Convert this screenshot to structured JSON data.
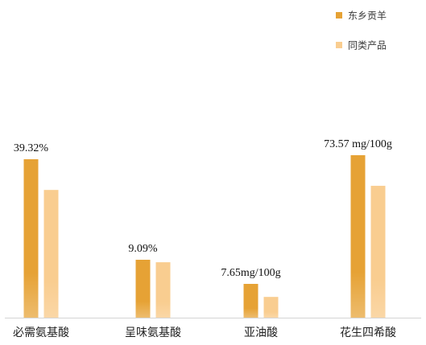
{
  "chart_data": {
    "type": "bar",
    "categories": [
      "必需氨基酸",
      "呈味氨基酸",
      "亚油酸",
      "花生四希酸"
    ],
    "series": [
      {
        "name": "东乡贡羊",
        "color": "#e6a235",
        "values": [
          39.32,
          9.09,
          7.65,
          73.57
        ],
        "data_labels": [
          "39.32%",
          "9.09%",
          "7.65mg/100g",
          "73.57 mg/100g"
        ]
      },
      {
        "name": "同类产品",
        "color": "#f9cd90",
        "values": [
          31.7,
          8.7,
          4.7,
          59.7
        ]
      }
    ],
    "legend": "top-right",
    "grid": false
  }
}
